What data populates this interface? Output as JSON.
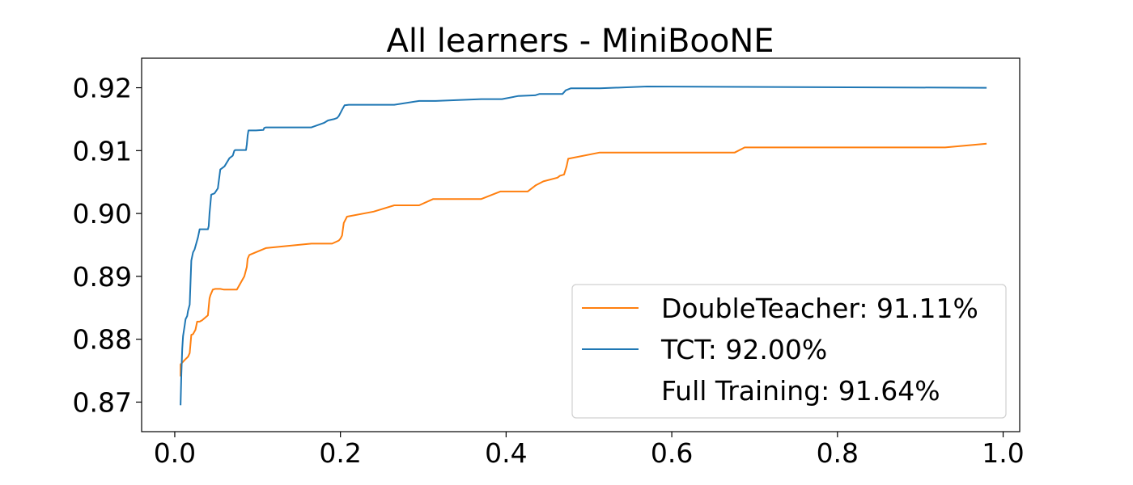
{
  "chart_data": {
    "type": "line",
    "title": "All learners - MiniBooNE",
    "xlabel": "",
    "ylabel": "",
    "xlim": [
      -0.04,
      1.02
    ],
    "ylim": [
      0.8653,
      0.9247
    ],
    "xticks": [
      0.0,
      0.2,
      0.4,
      0.6,
      0.8,
      1.0
    ],
    "xtick_labels": [
      "0.0",
      "0.2",
      "0.4",
      "0.6",
      "0.8",
      "1.0"
    ],
    "yticks": [
      0.87,
      0.88,
      0.89,
      0.9,
      0.91,
      0.92
    ],
    "ytick_labels": [
      "0.87",
      "0.88",
      "0.89",
      "0.90",
      "0.91",
      "0.92"
    ],
    "grid": false,
    "legend_position": "lower-right",
    "series": [
      {
        "name": "DoubleTeacher: 91.11%",
        "color": "#ff7f0e",
        "x": [
          0.007,
          0.007,
          0.012,
          0.016,
          0.018,
          0.02,
          0.022,
          0.025,
          0.027,
          0.03,
          0.033,
          0.04,
          0.042,
          0.043,
          0.046,
          0.049,
          0.055,
          0.059,
          0.067,
          0.075,
          0.084,
          0.087,
          0.088,
          0.09,
          0.11,
          0.165,
          0.19,
          0.198,
          0.2,
          0.202,
          0.203,
          0.204,
          0.208,
          0.24,
          0.265,
          0.295,
          0.312,
          0.37,
          0.393,
          0.426,
          0.436,
          0.445,
          0.462,
          0.465,
          0.47,
          0.473,
          0.475,
          0.513,
          0.676,
          0.688,
          0.93,
          0.98
        ],
        "y": [
          0.8741,
          0.876,
          0.8767,
          0.8772,
          0.8778,
          0.8807,
          0.8808,
          0.8815,
          0.8828,
          0.8828,
          0.883,
          0.8838,
          0.8865,
          0.887,
          0.8879,
          0.888,
          0.888,
          0.8879,
          0.8879,
          0.8879,
          0.89,
          0.8915,
          0.8928,
          0.8934,
          0.8945,
          0.8952,
          0.8952,
          0.8957,
          0.896,
          0.8965,
          0.8975,
          0.8985,
          0.8995,
          0.9003,
          0.9013,
          0.9013,
          0.9023,
          0.9023,
          0.9035,
          0.9035,
          0.9045,
          0.9051,
          0.9057,
          0.906,
          0.9062,
          0.9075,
          0.9087,
          0.9097,
          0.9097,
          0.9105,
          0.9105,
          0.9111
        ]
      },
      {
        "name": "TCT: 92.00%",
        "color": "#1f77b4",
        "x": [
          0.007,
          0.008,
          0.009,
          0.01,
          0.012,
          0.013,
          0.015,
          0.016,
          0.018,
          0.02,
          0.022,
          0.024,
          0.028,
          0.03,
          0.033,
          0.04,
          0.041,
          0.042,
          0.044,
          0.048,
          0.052,
          0.055,
          0.06,
          0.066,
          0.07,
          0.072,
          0.073,
          0.086,
          0.087,
          0.088,
          0.089,
          0.098,
          0.107,
          0.108,
          0.11,
          0.165,
          0.18,
          0.185,
          0.192,
          0.196,
          0.198,
          0.2,
          0.202,
          0.205,
          0.21,
          0.265,
          0.295,
          0.315,
          0.37,
          0.395,
          0.415,
          0.435,
          0.44,
          0.468,
          0.472,
          0.478,
          0.513,
          0.57,
          0.98
        ],
        "y": [
          0.8695,
          0.8745,
          0.8785,
          0.8805,
          0.8822,
          0.8832,
          0.8837,
          0.8845,
          0.8855,
          0.8925,
          0.8938,
          0.8943,
          0.8962,
          0.8975,
          0.8975,
          0.8975,
          0.898,
          0.9,
          0.903,
          0.9032,
          0.904,
          0.907,
          0.9075,
          0.9088,
          0.9092,
          0.91,
          0.9101,
          0.9101,
          0.911,
          0.9124,
          0.9132,
          0.9132,
          0.9133,
          0.9136,
          0.9137,
          0.9137,
          0.9144,
          0.9148,
          0.915,
          0.9152,
          0.9155,
          0.916,
          0.9165,
          0.9172,
          0.9173,
          0.9173,
          0.9179,
          0.9179,
          0.9182,
          0.9182,
          0.9187,
          0.9188,
          0.919,
          0.919,
          0.9196,
          0.9199,
          0.9199,
          0.9202,
          0.92
        ]
      }
    ],
    "legend_entries": [
      {
        "label": "DoubleTeacher: 91.11%",
        "color": "#ff7f0e",
        "has_line": true
      },
      {
        "label": "TCT: 92.00%",
        "color": "#1f77b4",
        "has_line": true
      },
      {
        "label": "Full Training: 91.64%",
        "color": "none",
        "has_line": false
      }
    ]
  }
}
